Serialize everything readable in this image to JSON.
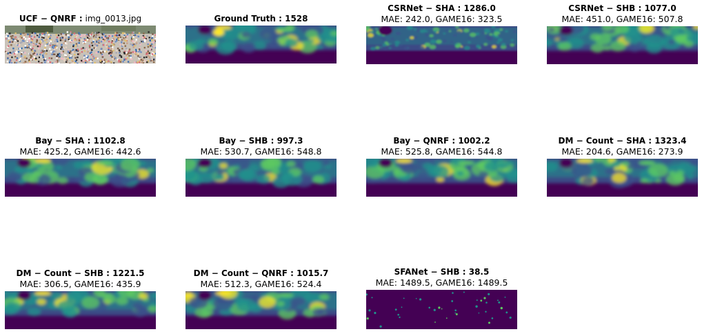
{
  "panels": [
    {
      "title_bold": "UCF − QNRF :",
      "title_plain": " img_0013.jpg",
      "subtitle": "",
      "kind": "photo"
    },
    {
      "title_bold": "Ground Truth : 1528",
      "title_plain": "",
      "subtitle": "",
      "kind": "density"
    },
    {
      "title_bold": "CSRNet − SHA : 1286.0",
      "title_plain": "",
      "subtitle": "MAE: 242.0, GAME16: 323.5",
      "kind": "density"
    },
    {
      "title_bold": "CSRNet − SHB : 1077.0",
      "title_plain": "",
      "subtitle": "MAE: 451.0, GAME16: 507.8",
      "kind": "density"
    },
    {
      "title_bold": "Bay − SHA : 1102.8",
      "title_plain": "",
      "subtitle": "MAE: 425.2, GAME16: 442.6",
      "kind": "density"
    },
    {
      "title_bold": "Bay − SHB : 997.3",
      "title_plain": "",
      "subtitle": "MAE: 530.7, GAME16: 548.8",
      "kind": "density"
    },
    {
      "title_bold": "Bay − QNRF : 1002.2",
      "title_plain": "",
      "subtitle": "MAE: 525.8, GAME16: 544.8",
      "kind": "density"
    },
    {
      "title_bold": "DM − Count − SHA : 1323.4",
      "title_plain": "",
      "subtitle": "MAE: 204.6, GAME16: 273.9",
      "kind": "density"
    },
    {
      "title_bold": "DM − Count − SHB : 1221.5",
      "title_plain": "",
      "subtitle": "MAE: 306.5, GAME16: 435.9",
      "kind": "density"
    },
    {
      "title_bold": "DM − Count − QNRF : 1015.7",
      "title_plain": "",
      "subtitle": "MAE: 512.3, GAME16: 524.4",
      "kind": "density"
    },
    {
      "title_bold": "SFANet − SHB : 38.5",
      "title_plain": "",
      "subtitle": "MAE: 1489.5, GAME16: 1489.5",
      "kind": "sparse"
    }
  ],
  "colors": {
    "bg": "#440154",
    "low": "#3b528b",
    "mid": "#21918c",
    "high": "#5ec962",
    "peak": "#fde725"
  }
}
